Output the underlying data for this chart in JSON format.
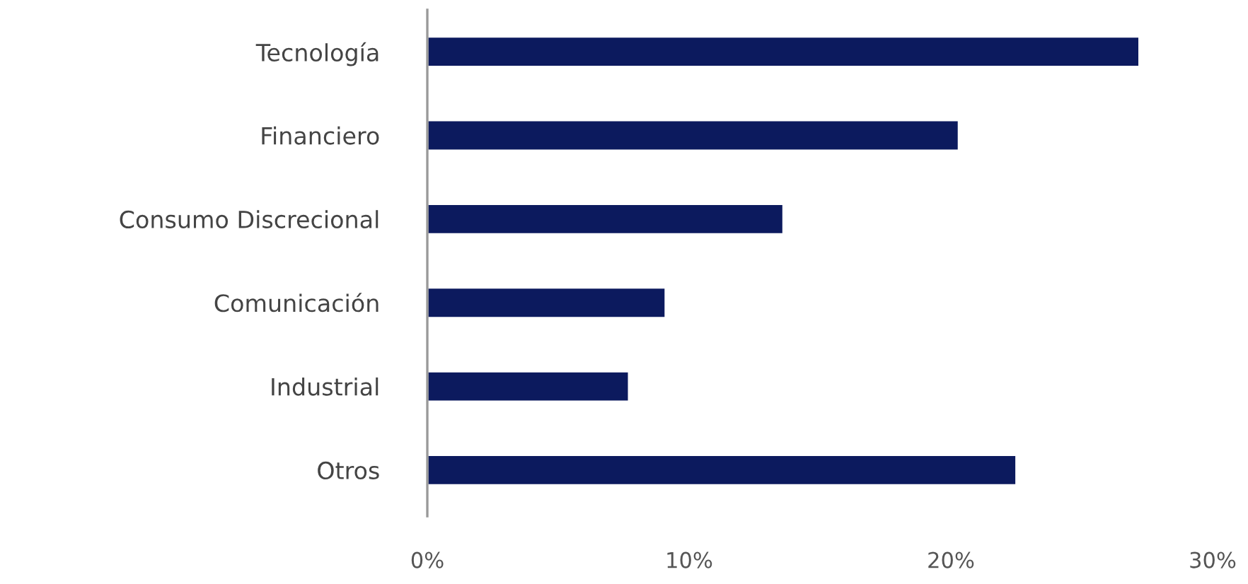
{
  "chart_data": {
    "type": "bar",
    "orientation": "horizontal",
    "categories": [
      "Tecnología",
      "Financiero",
      "Consumo Discrecional",
      "Comunicación",
      "Industrial",
      "Otros"
    ],
    "values": [
      27.2,
      20.3,
      13.6,
      9.1,
      7.7,
      22.5
    ],
    "color": "#0c1a5e",
    "xlim": [
      0,
      30
    ],
    "xticks": [
      {
        "value": 0,
        "label": "0%"
      },
      {
        "value": 10,
        "label": "10%"
      },
      {
        "value": 20,
        "label": "20%"
      },
      {
        "value": 30,
        "label": "30%"
      }
    ],
    "grid": false,
    "legend": false
  }
}
